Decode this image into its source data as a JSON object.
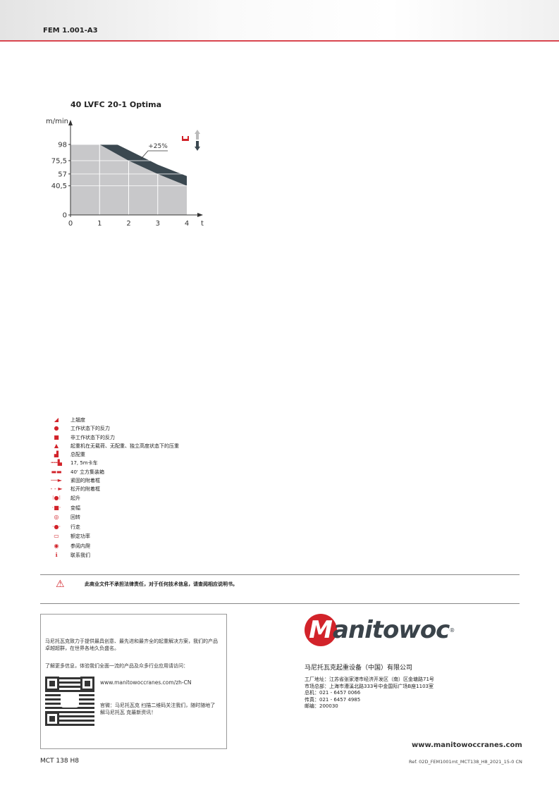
{
  "header": {
    "code": "FEM 1.001-A3",
    "accent": "#d9464f"
  },
  "chart_data": {
    "type": "area",
    "title": "40 LVFC 20-1 Optima",
    "ylabel": "m/min",
    "xlabel": "t",
    "xlim": [
      0,
      4
    ],
    "ylim": [
      0,
      98
    ],
    "x_ticks": [
      "0",
      "1",
      "2",
      "3",
      "4"
    ],
    "y_ticks": [
      "0",
      "40,5",
      "57",
      "75,5",
      "98"
    ],
    "y_tick_values": [
      0,
      40.5,
      57,
      75.5,
      98
    ],
    "series": [
      {
        "x": [
          0,
          1,
          2,
          3,
          4
        ],
        "y": [
          98,
          98,
          75.5,
          57,
          40.5
        ],
        "color": "#c8c8ca"
      },
      {
        "name": "+25%",
        "x": [
          1,
          1.6,
          2,
          3,
          4
        ],
        "y": [
          98,
          98,
          90,
          70,
          54
        ],
        "color": "#3b4850"
      }
    ],
    "annotation": "+25%",
    "icons": [
      "hook-block-icon",
      "hoist-up-arrow-icon",
      "hoist-down-arrow-icon"
    ]
  },
  "legend": [
    {
      "icon": "slope-icon",
      "glyph": "◢",
      "label": "上翘度"
    },
    {
      "icon": "circle-icon",
      "glyph": "●",
      "label": "工作状态下的反力"
    },
    {
      "icon": "square-icon",
      "glyph": "■",
      "label": "非工作状态下的反力"
    },
    {
      "icon": "dome-icon",
      "glyph": "▲",
      "label": "起重机在无载荷、无配重、独立高度状态下的压重"
    },
    {
      "icon": "counterweight-icon",
      "glyph": "▟",
      "label": "总配重"
    },
    {
      "icon": "truck-icon",
      "glyph": "┅┅▙",
      "label": "17, 5m卡车"
    },
    {
      "icon": "container-icon",
      "glyph": "▬▬",
      "label": "40' 立方集装箱"
    },
    {
      "icon": "arrow-solid-icon",
      "glyph": "──►",
      "label": "紧固的附着框"
    },
    {
      "icon": "arrow-dashed-icon",
      "glyph": "- - ►",
      "label": "松开的附着框"
    },
    {
      "icon": "hoist-icon",
      "glyph": "⁝●⁝",
      "label": "起升"
    },
    {
      "icon": "trolley-icon",
      "glyph": "·■·",
      "label": "变幅"
    },
    {
      "icon": "slewing-icon",
      "glyph": "◎",
      "label": "回转"
    },
    {
      "icon": "travel-icon",
      "glyph": "·●·",
      "label": "行走"
    },
    {
      "icon": "power-icon",
      "glyph": "▭",
      "label": "额定功率"
    },
    {
      "icon": "eye-icon",
      "glyph": "◉",
      "label": "参阅内爬"
    },
    {
      "icon": "info-icon",
      "glyph": "ℹ",
      "label": "联系我们"
    }
  ],
  "warning": "此商业文件不承担法律责任，对于任何技术信息，请查阅相应说明书。",
  "box": {
    "p1": "马尼托瓦克致力于提供最具创意、最先进和最齐全的起重解决方案，我们的产品卓越超群，在世界各地久负盛名。",
    "p2": "了解更多信息，体验我们全面一流的产品及众多行业应用请访问：",
    "url": "www.manitowoccranes.com/zh-CN",
    "p3": "官微：马尼托瓦克 扫描二维码关注我们，随时随地了解马尼托瓦 克最新资讯！"
  },
  "logo": {
    "text": "Manitowoc",
    "brand": "#d2232a"
  },
  "company": "马尼托瓦克起重设备（中国）有限公司",
  "address": [
    "工厂地址：江苏省张家港市经济开发区（南）区金塘路71号",
    "市场总部：上海市漕溪北路333号中金国际广场B座1103室",
    "总机：021 - 6457 0066",
    "传真：021 - 6457 4985",
    "邮编：200030"
  ],
  "footer": {
    "website": "www.manitowoccranes.com",
    "model": "MCT 138 H8",
    "ref": "Ref. 02D_FEM1001mt_MCT138_H8_2021_15-0 CN"
  }
}
